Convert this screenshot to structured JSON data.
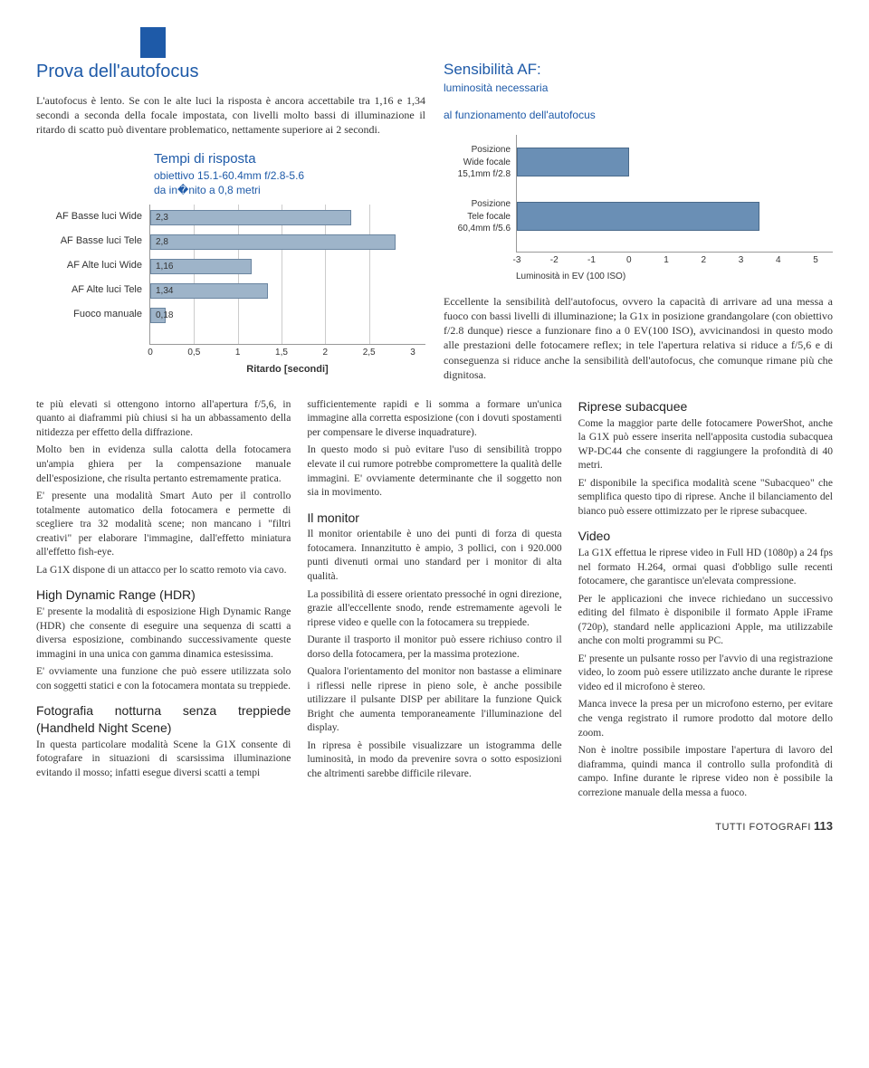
{
  "header_marker_color": "#1e5aa8",
  "top": {
    "title": "Prova dell'autofocus",
    "intro": "L'autofocus è lento. Se con le alte luci la risposta è ancora accettabile tra 1,16 e 1,34 secondi a seconda della focale impostata, con livelli molto bassi di illuminazione il ritardo di scatto può diventare problematico, nettamente superiore ai 2 secondi."
  },
  "chart1": {
    "title": "Tempi di risposta",
    "subtitle1": "obiettivo 15.1-60.4mm f/2.8-5.6",
    "subtitle2": "da in�nito a 0,8 metri",
    "xlabel": "Ritardo [secondi]",
    "bar_color": "#9eb4c9",
    "bar_border": "#6a85a0",
    "xmax": 3,
    "xticks": [
      "0",
      "0,5",
      "1",
      "1,5",
      "2",
      "2,5",
      "3"
    ],
    "rows": [
      {
        "label": "AF Basse luci Wide",
        "value": 2.3,
        "display": "2,3"
      },
      {
        "label": "AF Basse luci Tele",
        "value": 2.8,
        "display": "2,8"
      },
      {
        "label": "AF Alte luci Wide",
        "value": 1.16,
        "display": "1,16"
      },
      {
        "label": "AF Alte luci Tele",
        "value": 1.34,
        "display": "1,34"
      },
      {
        "label": "Fuoco manuale",
        "value": 0.18,
        "display": "0,18"
      }
    ]
  },
  "chart2": {
    "title": "Sensibilità AF:",
    "subtitle1": "luminosità necessaria",
    "subtitle2": "al funzionamento dell'autofocus",
    "bar_color": "#6a8fb5",
    "xmin": -3,
    "xmax": 5,
    "xticks": [
      "-3",
      "-2",
      "-1",
      "0",
      "1",
      "2",
      "3",
      "4",
      "5"
    ],
    "xlabel": "Luminosità in EV (100 ISO)",
    "rows": [
      {
        "label1": "Posizione",
        "label2": "Wide focale",
        "label3": "15,1mm f/2.8",
        "from": -3,
        "to": 0
      },
      {
        "label1": "Posizione",
        "label2": "Tele focale",
        "label3": "60,4mm f/5.6",
        "from": -3,
        "to": 3.5
      }
    ],
    "caption": "Eccellente la sensibilità dell'autofocus, ovvero la capacità di arrivare ad una messa a fuoco con bassi livelli di illuminazione; la G1x in posizione grandangolare (con obiettivo f/2.8 dunque) riesce a funzionare fino a 0 EV(100 ISO), avvicinandosi in questo modo alle prestazioni delle fotocamere reflex; in tele l'apertura relativa si riduce a f/5,6 e di conseguenza si riduce anche la sensibilità dell'autofocus, che comunque rimane più che dignitosa."
  },
  "col1": {
    "p1": "te più elevati si ottengono intorno all'apertura f/5,6, in quanto ai diaframmi più chiusi si ha un abbassamento della nitidezza per effetto della diffrazione.",
    "p2": "Molto ben in evidenza sulla calotta della fotocamera un'ampia ghiera per la compensazione manuale dell'esposizione, che risulta pertanto estremamente pratica.",
    "p3": "E' presente una modalità Smart Auto per il controllo totalmente automatico della fotocamera e permette di scegliere tra 32 modalità scene; non mancano i \"filtri creativi\" per elaborare l'immagine, dall'effetto miniatura all'effetto fish-eye.",
    "p4": "La G1X dispone di un attacco per lo scatto remoto via cavo.",
    "h1": "High Dynamic Range (HDR)",
    "p5": "E' presente la modalità di esposizione High Dynamic Range (HDR) che consente di eseguire una sequenza di scatti a diversa esposizione, combinando successivamente queste immagini in una unica con gamma dinamica estesissima.",
    "p6": "E' ovviamente una funzione che può essere utilizzata solo con soggetti statici e con la fotocamera montata su treppiede.",
    "h2": "Fotografia notturna senza treppiede (Handheld Night Scene)",
    "p7": "In questa particolare modalità Scene la G1X consente di fotografare in situazioni di scarsissima illuminazione evitando il mosso; infatti esegue diversi scatti a tempi"
  },
  "col2": {
    "p1": "sufficientemente rapidi e li somma a formare un'unica immagine alla corretta esposizione (con i dovuti spostamenti per compensare le diverse inquadrature).",
    "p2": "In questo modo si può evitare l'uso di sensibilità troppo elevate il cui rumore potrebbe compromettere la qualità delle immagini. E' ovviamente determinante che il soggetto non sia in movimento.",
    "h1": "Il monitor",
    "p3": "Il monitor orientabile è uno dei punti di forza di questa fotocamera. Innanzitutto è ampio, 3 pollici, con i 920.000 punti divenuti ormai uno standard per i monitor di alta qualità.",
    "p4": "La possibilità di essere orientato pressoché in ogni direzione, grazie all'eccellente snodo, rende estremamente agevoli le riprese video e quelle con la fotocamera su treppiede.",
    "p5": "Durante il trasporto il monitor può essere richiuso contro il dorso della fotocamera, per la massima protezione.",
    "p6": "Qualora l'orientamento del monitor non bastasse a eliminare i riflessi nelle riprese in pieno sole, è anche possibile utilizzare il pulsante DISP per abilitare la funzione Quick Bright che aumenta temporaneamente l'illuminazione del display.",
    "p7": "In ripresa è possibile visualizzare un istogramma delle luminosità, in modo da prevenire sovra o sotto esposizioni che altrimenti sarebbe difficile rilevare."
  },
  "col3": {
    "h1": "Riprese subacquee",
    "p1": "Come la maggior parte delle fotocamere PowerShot, anche la G1X può essere inserita nell'apposita custodia subacquea WP-DC44 che consente di raggiungere la profondità di 40 metri.",
    "p2": "E' disponibile la specifica modalità scene \"Subacqueo\" che semplifica questo tipo di riprese. Anche il bilanciamento del bianco può essere ottimizzato per le riprese subacquee.",
    "h2": "Video",
    "p3": "La G1X effettua le riprese video in Full HD (1080p) a 24 fps nel formato H.264, ormai quasi d'obbligo sulle recenti fotocamere, che garantisce un'elevata compressione.",
    "p4": "Per le applicazioni che invece richiedano un successivo editing del filmato è disponibile il formato Apple iFrame (720p), standard nelle applicazioni Apple, ma utilizzabile anche con molti programmi su PC.",
    "p5": "E' presente un pulsante rosso per l'avvio di una registrazione video, lo zoom può essere utilizzato anche durante le riprese video ed il microfono è stereo.",
    "p6": "Manca invece la presa per un microfono esterno, per evitare che venga registrato il rumore prodotto dal motore dello zoom.",
    "p7": "Non è inoltre possibile impostare l'apertura di lavoro del diaframma, quindi manca il controllo sulla profondità di campo. Infine durante le riprese video non è possibile la correzione manuale della messa a fuoco."
  },
  "footer": {
    "mag": "TUTTI FOTOGRAFI",
    "page": "113"
  }
}
